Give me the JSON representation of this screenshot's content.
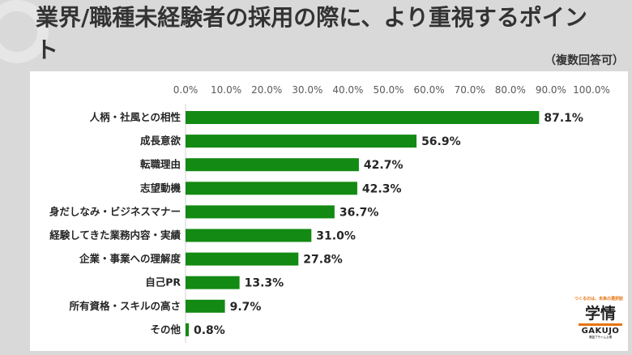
{
  "header": {
    "title": "業界/職種未経験者の採用の際に、より重視するポイント",
    "note": "（複数回答可）"
  },
  "logo": {
    "tagline": "つくるのは、未来の選択肢",
    "kanji": "学情",
    "roman": "GAKUJO",
    "sub": "東証プライム上場"
  },
  "colors": {
    "bar": "#138a13",
    "background": "#d9d9d9",
    "panel": "#ffffff",
    "accent": "#e8730c"
  },
  "chart_data": {
    "type": "bar",
    "orientation": "horizontal",
    "title": "業界/職種未経験者の採用の際に、より重視するポイント",
    "xlim": [
      0,
      100
    ],
    "ticks": [
      "0.0%",
      "10.0%",
      "20.0%",
      "30.0%",
      "40.0%",
      "50.0%",
      "60.0%",
      "70.0%",
      "80.0%",
      "90.0%",
      "100.0%"
    ],
    "tick_position": "top",
    "grid": false,
    "categories": [
      "人柄・社風との相性",
      "成長意欲",
      "転職理由",
      "志望動機",
      "身だしなみ・ビジネスマナー",
      "経験してきた業務内容・実績",
      "企業・事業への理解度",
      "自己PR",
      "所有資格・スキルの高さ",
      "その他"
    ],
    "values": [
      87.1,
      56.9,
      42.7,
      42.3,
      36.7,
      31.0,
      27.8,
      13.3,
      9.7,
      0.8
    ],
    "labels": [
      "87.1%",
      "56.9%",
      "42.7%",
      "42.3%",
      "36.7%",
      "31.0%",
      "27.8%",
      "13.3%",
      "9.7%",
      "0.8%"
    ]
  }
}
